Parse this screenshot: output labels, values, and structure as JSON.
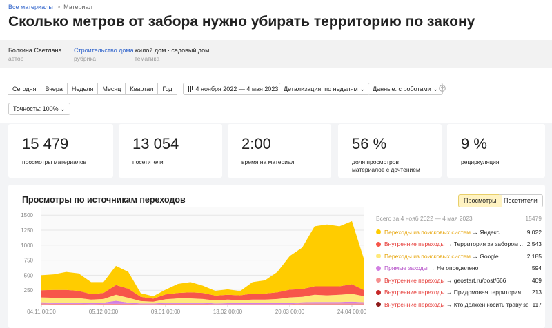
{
  "breadcrumb": {
    "root": "Все материалы",
    "separator": ">",
    "current": "Материал"
  },
  "title": "Сколько метров от забора нужно убирать территорию по закону",
  "meta": [
    {
      "value": "Болкина Светлана",
      "label": "автор"
    },
    {
      "value": "Строительство дома",
      "label": "рубрика"
    },
    {
      "value": "жилой дом · садовый дом",
      "label": "тематика"
    }
  ],
  "toolbar": {
    "periods": [
      "Сегодня",
      "Вчера",
      "Неделя",
      "Месяц",
      "Квартал",
      "Год"
    ],
    "date_range": "4 ноября 2022 — 4 мая 2023",
    "detail": "Детализация: по неделям",
    "data_mode": "Данные: с роботами",
    "accuracy": "Точность: 100%"
  },
  "stats": [
    {
      "value": "15 479",
      "label": "просмотры материалов"
    },
    {
      "value": "13 054",
      "label": "посетители"
    },
    {
      "value": "2:00",
      "label": "время на материал"
    },
    {
      "value": "56 %",
      "label": "доля просмотров материалов с дочтением"
    },
    {
      "value": "9 %",
      "label": "рециркуляция"
    }
  ],
  "chart_data": {
    "type": "area",
    "stacked": true,
    "title": "Просмотры по источникам переходов",
    "toggle": [
      "Просмотры",
      "Посетители"
    ],
    "legend_header": "Всего за 4 нояб 2022 — 4 мая 2023",
    "legend_total": "15479",
    "categories": [
      "04.11 00:00",
      null,
      null,
      null,
      null,
      "05.12 00:00",
      null,
      null,
      null,
      null,
      "09.01 00:00",
      null,
      null,
      null,
      null,
      "13.02 00:00",
      null,
      null,
      null,
      null,
      "20.03 00:00",
      null,
      null,
      null,
      null,
      "24.04 00:00",
      null
    ],
    "ylim": [
      0,
      1640
    ],
    "yticks": [
      250,
      500,
      750,
      1000,
      1250,
      1500
    ],
    "grid": true,
    "series": [
      {
        "name": "Переходы из поисковых систем",
        "detail": "→ Яндекс",
        "total": "9 022",
        "color": "#ffcc00",
        "text_color": "#e6a100",
        "values": [
          250,
          260,
          300,
          290,
          200,
          180,
          320,
          280,
          60,
          40,
          80,
          150,
          170,
          120,
          80,
          90,
          70,
          190,
          220,
          340,
          560,
          690,
          1000,
          1030,
          1000,
          1050,
          500
        ]
      },
      {
        "name": "Внутренние переходы",
        "detail": "→ Территория за забором ...",
        "total": "2 543",
        "color": "#f7564a",
        "text_color": "#e53935",
        "values": [
          120,
          130,
          130,
          120,
          90,
          100,
          160,
          150,
          70,
          50,
          80,
          90,
          100,
          100,
          80,
          80,
          80,
          100,
          100,
          110,
          130,
          130,
          140,
          150,
          140,
          160,
          100
        ]
      },
      {
        "name": "Переходы из поисковых систем",
        "detail": "→ Google",
        "total": "2 185",
        "color": "#ffe97a",
        "text_color": "#e6a100",
        "values": [
          80,
          80,
          80,
          80,
          60,
          60,
          100,
          80,
          40,
          30,
          60,
          70,
          70,
          60,
          50,
          60,
          50,
          60,
          60,
          70,
          90,
          90,
          120,
          110,
          120,
          130,
          100
        ]
      },
      {
        "name": "Прямые заходы",
        "detail": "→ Не определено",
        "total": "594",
        "color": "#d27fe3",
        "text_color": "#b44fc8",
        "values": [
          20,
          20,
          20,
          15,
          15,
          20,
          50,
          20,
          10,
          10,
          15,
          20,
          20,
          20,
          10,
          15,
          15,
          15,
          15,
          15,
          20,
          20,
          25,
          25,
          25,
          30,
          20
        ]
      },
      {
        "name": "Внутренние переходы",
        "detail": "→ geostart.ru/post/666",
        "total": "409",
        "color": "#f68f8f",
        "text_color": "#e53935",
        "values": [
          15,
          15,
          15,
          15,
          10,
          15,
          15,
          15,
          10,
          10,
          15,
          15,
          15,
          15,
          10,
          10,
          10,
          10,
          10,
          10,
          10,
          15,
          15,
          15,
          15,
          15,
          15
        ]
      },
      {
        "name": "Внутренние переходы",
        "detail": "→ Придомовая территория ...",
        "total": "213",
        "color": "#c62828",
        "text_color": "#e53935",
        "values": [
          10,
          5,
          5,
          5,
          5,
          5,
          5,
          5,
          5,
          5,
          5,
          5,
          5,
          5,
          5,
          5,
          5,
          5,
          5,
          5,
          5,
          10,
          10,
          10,
          10,
          10,
          10
        ]
      },
      {
        "name": "Внутренние переходы",
        "detail": "→ Кто должен косить траву за забором",
        "total": "117",
        "color": "#8e1b1b",
        "text_color": "#e53935",
        "values": [
          5,
          5,
          5,
          5,
          5,
          5,
          5,
          5,
          5,
          5,
          5,
          5,
          5,
          5,
          5,
          5,
          5,
          5,
          5,
          5,
          5,
          5,
          5,
          5,
          5,
          5,
          5
        ]
      }
    ]
  }
}
